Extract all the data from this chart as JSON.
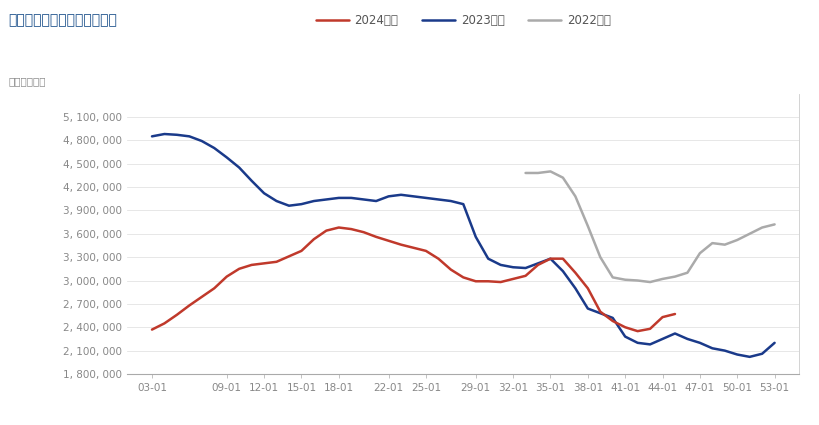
{
  "title": "原木：港口库存：中国（周）",
  "unit_label": "单位：立方米",
  "legend": [
    "2024年度",
    "2023年度",
    "2022年度"
  ],
  "legend_colors": [
    "#c0392b",
    "#1a3a8a",
    "#aaaaaa"
  ],
  "x_ticks": [
    "03-01",
    "09-01",
    "12-01",
    "15-01",
    "18-01",
    "22-01",
    "25-01",
    "29-01",
    "32-01",
    "35-01",
    "38-01",
    "41-01",
    "44-01",
    "47-01",
    "50-01",
    "53-01"
  ],
  "x_tick_positions": [
    3,
    9,
    12,
    15,
    18,
    22,
    25,
    29,
    32,
    35,
    38,
    41,
    44,
    47,
    50,
    53
  ],
  "ylim": [
    1800000,
    5400000
  ],
  "yticks": [
    1800000,
    2100000,
    2400000,
    2700000,
    3000000,
    3300000,
    3600000,
    3900000,
    4200000,
    4500000,
    4800000,
    5100000
  ],
  "ytick_labels": [
    "1, 800, 000",
    "2, 100, 000",
    "2, 400, 000",
    "2, 700, 000",
    "3, 000, 000",
    "3, 300, 000",
    "3, 600, 000",
    "3, 900, 000",
    "4, 200, 000",
    "4, 500, 000",
    "4, 800, 000",
    "5, 100, 000"
  ],
  "background_color": "#ffffff",
  "grid_color": "#dddddd",
  "title_color": "#1a4f8a",
  "tick_color": "#888888",
  "series_2024": {
    "x": [
      3,
      4,
      5,
      6,
      7,
      8,
      9,
      10,
      11,
      12,
      13,
      14,
      15,
      16,
      17,
      18,
      19,
      20,
      21,
      22,
      23,
      24,
      25,
      26,
      27,
      28,
      29,
      30,
      31,
      32,
      33,
      34,
      35,
      36,
      37,
      38,
      39,
      40,
      41,
      42,
      43,
      44,
      45
    ],
    "y": [
      2370000,
      2450000,
      2560000,
      2680000,
      2790000,
      2900000,
      3050000,
      3150000,
      3200000,
      3220000,
      3240000,
      3310000,
      3380000,
      3530000,
      3640000,
      3680000,
      3660000,
      3620000,
      3560000,
      3510000,
      3460000,
      3420000,
      3380000,
      3280000,
      3140000,
      3040000,
      2990000,
      2990000,
      2980000,
      3020000,
      3060000,
      3200000,
      3280000,
      3280000,
      3100000,
      2900000,
      2600000,
      2480000,
      2400000,
      2350000,
      2380000,
      2530000,
      2570000
    ]
  },
  "series_2023": {
    "x": [
      3,
      4,
      5,
      6,
      7,
      8,
      9,
      10,
      11,
      12,
      13,
      14,
      15,
      16,
      17,
      18,
      19,
      20,
      21,
      22,
      23,
      24,
      25,
      26,
      27,
      28,
      29,
      30,
      31,
      32,
      33,
      34,
      35,
      36,
      37,
      38,
      39,
      40,
      41,
      42,
      43,
      44,
      45,
      46,
      47,
      48,
      49,
      50,
      51,
      52,
      53
    ],
    "y": [
      4850000,
      4880000,
      4870000,
      4850000,
      4790000,
      4700000,
      4580000,
      4450000,
      4280000,
      4120000,
      4020000,
      3960000,
      3980000,
      4020000,
      4040000,
      4060000,
      4060000,
      4040000,
      4020000,
      4080000,
      4100000,
      4080000,
      4060000,
      4040000,
      4020000,
      3980000,
      3560000,
      3280000,
      3200000,
      3170000,
      3160000,
      3220000,
      3280000,
      3120000,
      2900000,
      2640000,
      2580000,
      2520000,
      2280000,
      2200000,
      2180000,
      2250000,
      2320000,
      2250000,
      2200000,
      2130000,
      2100000,
      2050000,
      2020000,
      2060000,
      2200000
    ]
  },
  "series_2022": {
    "x": [
      33,
      34,
      35,
      36,
      37,
      38,
      39,
      40,
      41,
      42,
      43,
      44,
      45,
      46,
      47,
      48,
      49,
      50,
      51,
      52,
      53
    ],
    "y": [
      4380000,
      4380000,
      4400000,
      4320000,
      4080000,
      3700000,
      3300000,
      3040000,
      3010000,
      3000000,
      2980000,
      3020000,
      3050000,
      3100000,
      3350000,
      3480000,
      3460000,
      3520000,
      3600000,
      3680000,
      3720000
    ]
  }
}
